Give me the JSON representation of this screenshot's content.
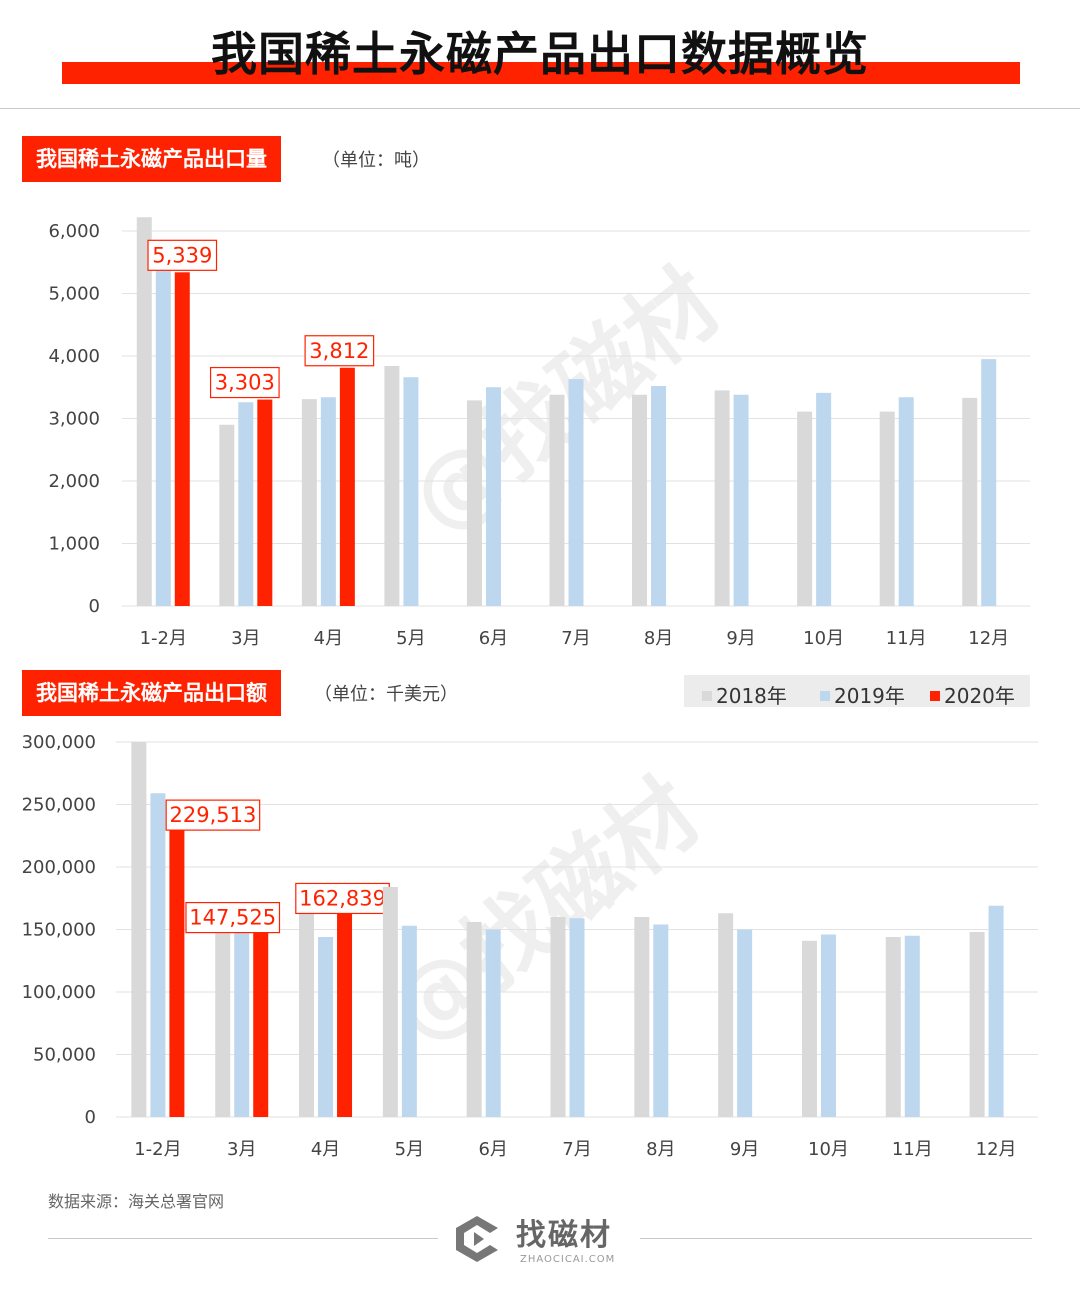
{
  "title": "我国稀土永磁产品出口数据概览",
  "source": "数据来源：海关总署官网",
  "brand": {
    "name": "找磁材",
    "sub": "ZHAOCICAI.COM",
    "watermark": "@找磁材"
  },
  "colors": {
    "series_2018": "#d9d9d9",
    "series_2019": "#bdd7ee",
    "series_2020": "#ff2200",
    "accent": "#ff2200"
  },
  "legend": {
    "s2018": "2018年",
    "s2019": "2019年",
    "s2020": "2020年"
  },
  "chart_data": [
    {
      "type": "bar",
      "title": "我国稀土永磁产品出口量",
      "unit": "（单位：吨）",
      "categories": [
        "1-2月",
        "3月",
        "4月",
        "5月",
        "6月",
        "7月",
        "8月",
        "9月",
        "10月",
        "11月",
        "12月"
      ],
      "series": [
        {
          "name": "2018年",
          "values": [
            6220,
            2900,
            3310,
            3840,
            3290,
            3380,
            3380,
            3450,
            3110,
            3110,
            3330
          ]
        },
        {
          "name": "2019年",
          "values": [
            5850,
            3260,
            3340,
            3660,
            3500,
            3630,
            3520,
            3380,
            3410,
            3340,
            3950
          ]
        },
        {
          "name": "2020年",
          "values": [
            5339,
            3303,
            3812,
            null,
            null,
            null,
            null,
            null,
            null,
            null,
            null
          ]
        }
      ],
      "data_labels": [
        "5,339",
        "3,303",
        "3,812"
      ],
      "ylim": [
        0,
        6000
      ],
      "yticks": [
        "0",
        "1,000",
        "2,000",
        "3,000",
        "4,000",
        "5,000",
        "6,000"
      ],
      "grid": true
    },
    {
      "type": "bar",
      "title": "我国稀土永磁产品出口额",
      "unit": "（单位：千美元）",
      "categories": [
        "1-2月",
        "3月",
        "4月",
        "5月",
        "6月",
        "7月",
        "8月",
        "9月",
        "10月",
        "11月",
        "12月"
      ],
      "series": [
        {
          "name": "2018年",
          "values": [
            300000,
            147000,
            163000,
            184000,
            156000,
            160000,
            160000,
            163000,
            141000,
            144000,
            148000
          ]
        },
        {
          "name": "2019年",
          "values": [
            259000,
            148000,
            144000,
            153000,
            150000,
            159000,
            154000,
            150000,
            146000,
            145000,
            169000
          ]
        },
        {
          "name": "2020年",
          "values": [
            229513,
            147525,
            162839,
            null,
            null,
            null,
            null,
            null,
            null,
            null,
            null
          ]
        }
      ],
      "data_labels": [
        "229,513",
        "147,525",
        "162,839"
      ],
      "ylim": [
        0,
        300000
      ],
      "yticks": [
        "0",
        "50,000",
        "100,000",
        "150,000",
        "200,000",
        "250,000",
        "300,000"
      ],
      "grid": true,
      "legend": "top-right"
    }
  ]
}
